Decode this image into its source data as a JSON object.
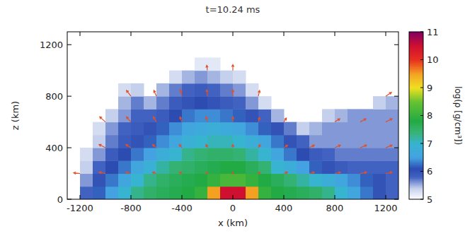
{
  "chart_data": {
    "type": "heatmap",
    "title": "t=10.24 ms",
    "x_label": "x (km)",
    "y_label": "z (km)",
    "xlim": [
      -1300,
      1300
    ],
    "ylim": [
      0,
      1300
    ],
    "xticks": [
      -1200,
      -800,
      -400,
      0,
      400,
      800,
      1200
    ],
    "yticks": [
      0,
      400,
      800,
      1200
    ],
    "x": [
      -1250,
      -1150,
      -1050,
      -950,
      -850,
      -750,
      -650,
      -550,
      -450,
      -350,
      -250,
      -150,
      -50,
      50,
      150,
      250,
      350,
      450,
      550,
      650,
      750,
      850,
      950,
      1050,
      1150,
      1250
    ],
    "z": [
      50,
      150,
      250,
      350,
      450,
      550,
      650,
      750,
      850,
      950,
      1050
    ],
    "cells": [
      [
        null,
        5.8,
        6.2,
        6.5,
        7.0,
        7.3,
        7.5,
        7.6,
        7.7,
        7.8,
        8.0,
        9.5,
        10.5,
        10.5,
        9.5,
        8.0,
        7.8,
        7.7,
        7.6,
        7.5,
        7.3,
        7.0,
        6.6,
        6.3,
        6.0,
        5.8
      ],
      [
        null,
        5.6,
        6.0,
        6.3,
        6.6,
        7.0,
        7.3,
        7.5,
        7.6,
        7.7,
        7.8,
        8.0,
        8.2,
        8.2,
        8.0,
        7.8,
        7.6,
        7.4,
        7.2,
        7.0,
        6.8,
        6.6,
        6.4,
        6.2,
        6.0,
        5.8
      ],
      [
        null,
        5.4,
        5.8,
        6.1,
        6.3,
        6.6,
        6.9,
        7.2,
        7.4,
        7.5,
        7.6,
        7.7,
        7.8,
        7.8,
        7.6,
        7.4,
        7.0,
        6.8,
        6.5,
        6.2,
        6.0,
        5.9,
        5.8,
        5.8,
        5.8,
        5.8
      ],
      [
        null,
        5.3,
        5.6,
        5.9,
        6.1,
        6.3,
        6.5,
        6.8,
        7.0,
        7.3,
        7.4,
        7.5,
        7.5,
        7.4,
        7.2,
        7.0,
        6.6,
        6.3,
        6.1,
        5.9,
        5.8,
        5.7,
        5.7,
        5.7,
        5.7,
        5.7
      ],
      [
        null,
        null,
        5.4,
        5.7,
        5.9,
        6.0,
        6.2,
        6.4,
        6.6,
        6.9,
        7.0,
        7.1,
        7.1,
        7.0,
        6.8,
        6.6,
        6.3,
        6.0,
        5.8,
        5.6,
        5.6,
        5.6,
        5.6,
        5.6,
        5.6,
        5.6
      ],
      [
        null,
        null,
        5.3,
        5.6,
        5.8,
        5.9,
        6.0,
        6.2,
        6.4,
        6.6,
        6.7,
        6.8,
        6.7,
        6.6,
        6.4,
        6.2,
        6.0,
        5.7,
        5.4,
        5.5,
        5.6,
        5.6,
        5.6,
        5.6,
        5.6,
        5.6
      ],
      [
        null,
        null,
        null,
        5.4,
        5.6,
        5.8,
        5.8,
        5.9,
        6.1,
        6.3,
        6.4,
        6.4,
        6.3,
        6.2,
        6.0,
        5.8,
        5.5,
        null,
        null,
        null,
        5.4,
        5.5,
        5.6,
        5.6,
        5.6,
        5.6
      ],
      [
        null,
        null,
        null,
        null,
        5.5,
        5.7,
        5.5,
        5.7,
        5.9,
        6.0,
        6.1,
        6.0,
        5.9,
        5.8,
        5.6,
        5.3,
        null,
        null,
        null,
        null,
        null,
        null,
        null,
        null,
        5.4,
        5.5
      ],
      [
        null,
        null,
        null,
        null,
        5.3,
        5.4,
        null,
        5.5,
        5.7,
        5.8,
        5.9,
        5.8,
        5.7,
        5.6,
        5.3,
        null,
        null,
        null,
        null,
        null,
        null,
        null,
        null,
        null,
        null,
        null
      ],
      [
        null,
        null,
        null,
        null,
        null,
        null,
        null,
        null,
        5.3,
        5.5,
        5.6,
        5.5,
        5.4,
        5.3,
        null,
        null,
        null,
        null,
        null,
        null,
        null,
        null,
        null,
        null,
        null,
        null
      ],
      [
        null,
        null,
        null,
        null,
        null,
        null,
        null,
        null,
        null,
        null,
        5.2,
        5.2,
        null,
        null,
        null,
        null,
        null,
        null,
        null,
        null,
        null,
        null,
        null,
        null,
        null,
        null
      ]
    ],
    "colorbar": {
      "range": [
        5,
        11
      ],
      "ticks": [
        5,
        6,
        7,
        8,
        9,
        10,
        11
      ],
      "label": "log(ρ [g/cm³])"
    },
    "arrows": {
      "color": "#e0502a",
      "x": [
        -1200,
        -1000,
        -800,
        -600,
        -400,
        -200,
        0,
        200,
        400,
        600,
        800,
        1000,
        1200,
        -1000,
        -800,
        -600,
        -400,
        -200,
        0,
        200,
        400,
        600,
        800,
        1000,
        1200,
        -1000,
        -800,
        -600,
        -400,
        -200,
        0,
        200,
        400,
        800,
        1000,
        1200,
        -800,
        -600,
        -400,
        -200,
        0,
        200,
        1200,
        -200,
        0
      ],
      "z": [
        200,
        200,
        200,
        200,
        200,
        200,
        200,
        200,
        200,
        200,
        200,
        200,
        200,
        400,
        400,
        400,
        400,
        400,
        400,
        400,
        400,
        400,
        400,
        400,
        400,
        600,
        600,
        600,
        600,
        600,
        600,
        600,
        600,
        600,
        600,
        600,
        800,
        800,
        800,
        800,
        800,
        800,
        800,
        1000,
        1000
      ],
      "dx": [
        -50,
        -50,
        -40,
        -30,
        -20,
        -10,
        0,
        15,
        30,
        40,
        45,
        50,
        50,
        -50,
        -40,
        -30,
        -20,
        -10,
        0,
        15,
        30,
        40,
        45,
        50,
        50,
        -45,
        -35,
        -25,
        -15,
        -10,
        0,
        10,
        20,
        40,
        45,
        50,
        -35,
        -20,
        -10,
        -5,
        0,
        10,
        45,
        -5,
        0
      ],
      "dz": [
        5,
        10,
        10,
        10,
        10,
        10,
        10,
        10,
        10,
        10,
        10,
        10,
        10,
        25,
        25,
        25,
        25,
        25,
        25,
        25,
        20,
        20,
        20,
        20,
        20,
        40,
        40,
        40,
        40,
        40,
        40,
        35,
        30,
        25,
        25,
        25,
        45,
        45,
        50,
        50,
        50,
        45,
        30,
        40,
        45
      ]
    }
  }
}
